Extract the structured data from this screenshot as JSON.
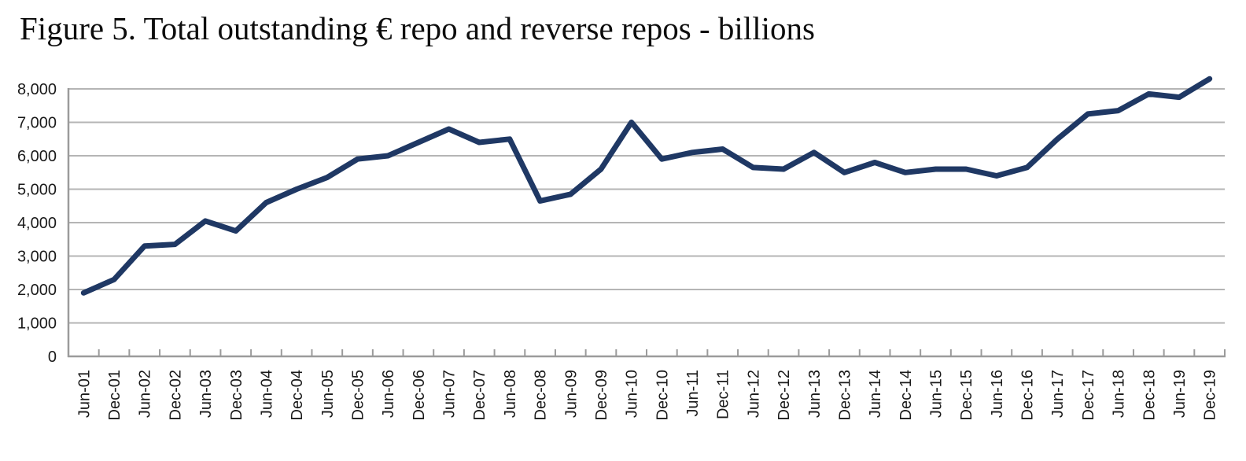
{
  "figure": {
    "title": "Figure 5. Total outstanding € repo and reverse repos - billions"
  },
  "chart_data": {
    "type": "line",
    "title": "Figure 5. Total outstanding € repo and reverse repos - billions",
    "xlabel": "",
    "ylabel": "",
    "categories": [
      "Jun-01",
      "Dec-01",
      "Jun-02",
      "Dec-02",
      "Jun-03",
      "Dec-03",
      "Jun-04",
      "Dec-04",
      "Jun-05",
      "Dec-05",
      "Jun-06",
      "Dec-06",
      "Jun-07",
      "Dec-07",
      "Jun-08",
      "Dec-08",
      "Jun-09",
      "Dec-09",
      "Jun-10",
      "Dec-10",
      "Jun-11",
      "Dec-11",
      "Jun-12",
      "Dec-12",
      "Jun-13",
      "Dec-13",
      "Jun-14",
      "Dec-14",
      "Jun-15",
      "Dec-15",
      "Jun-16",
      "Dec-16",
      "Jun-17",
      "Dec-17",
      "Jun-18",
      "Dec-18",
      "Jun-19",
      "Dec-19"
    ],
    "values": [
      1900,
      2300,
      3300,
      3350,
      4050,
      3750,
      4600,
      5000,
      5350,
      5900,
      6000,
      6400,
      6800,
      6400,
      6500,
      4650,
      4850,
      5600,
      7000,
      5900,
      6100,
      6200,
      5650,
      5600,
      6100,
      5500,
      5800,
      5500,
      5600,
      5600,
      5400,
      5650,
      6500,
      7250,
      7350,
      7850,
      7750,
      8300
    ],
    "ylim": [
      0,
      8000
    ],
    "ytick_step": 1000,
    "ytick_labels": [
      "0",
      "1,000",
      "2,000",
      "3,000",
      "4,000",
      "5,000",
      "6,000",
      "7,000",
      "8,000"
    ],
    "grid": "horizontal-on",
    "legend": "none",
    "line_color": "#1f3864",
    "gridline_color": "#b5b5b5",
    "axis_color": "#9b9b9b",
    "text_color": "#1a1a1a"
  }
}
